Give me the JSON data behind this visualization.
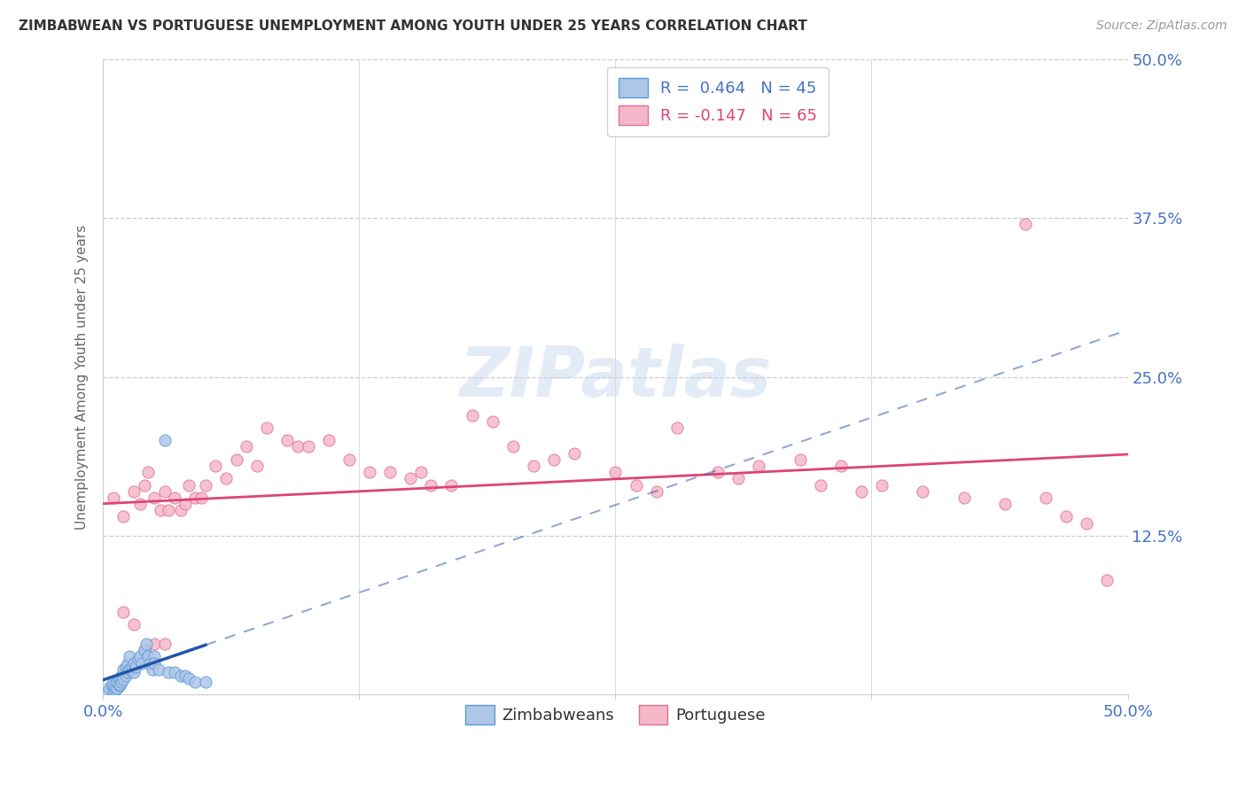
{
  "title": "ZIMBABWEAN VS PORTUGUESE UNEMPLOYMENT AMONG YOUTH UNDER 25 YEARS CORRELATION CHART",
  "source": "Source: ZipAtlas.com",
  "ylabel": "Unemployment Among Youth under 25 years",
  "xlim": [
    0.0,
    0.5
  ],
  "ylim": [
    0.0,
    0.5
  ],
  "xtick_labels_left": "0.0%",
  "xtick_labels_right": "50.0%",
  "ytick_labels": [
    "50.0%",
    "37.5%",
    "25.0%",
    "12.5%"
  ],
  "ytick_vals": [
    0.5,
    0.375,
    0.25,
    0.125
  ],
  "zim_R": 0.464,
  "zim_N": 45,
  "port_R": -0.147,
  "port_N": 65,
  "zim_color": "#aec6e8",
  "zim_edge_color": "#5b9bd5",
  "port_color": "#f5b8c8",
  "port_edge_color": "#e07090",
  "zim_trend_color": "#2255aa",
  "port_trend_color": "#dd4477",
  "watermark_color": "#c8d8ee",
  "zim_x": [
    0.002,
    0.003,
    0.004,
    0.005,
    0.005,
    0.006,
    0.006,
    0.007,
    0.007,
    0.008,
    0.008,
    0.008,
    0.009,
    0.009,
    0.01,
    0.01,
    0.011,
    0.011,
    0.012,
    0.012,
    0.013,
    0.013,
    0.014,
    0.015,
    0.015,
    0.016,
    0.017,
    0.018,
    0.019,
    0.02,
    0.021,
    0.022,
    0.023,
    0.024,
    0.025,
    0.025,
    0.027,
    0.03,
    0.032,
    0.035,
    0.038,
    0.04,
    0.042,
    0.045,
    0.05
  ],
  "zim_y": [
    0.002,
    0.005,
    0.008,
    0.003,
    0.007,
    0.004,
    0.006,
    0.005,
    0.01,
    0.007,
    0.012,
    0.008,
    0.01,
    0.015,
    0.012,
    0.02,
    0.015,
    0.022,
    0.018,
    0.025,
    0.02,
    0.03,
    0.022,
    0.018,
    0.025,
    0.022,
    0.028,
    0.03,
    0.025,
    0.035,
    0.04,
    0.03,
    0.025,
    0.02,
    0.03,
    0.025,
    0.02,
    0.2,
    0.018,
    0.018,
    0.015,
    0.015,
    0.013,
    0.01,
    0.01
  ],
  "port_x": [
    0.005,
    0.01,
    0.015,
    0.018,
    0.02,
    0.022,
    0.025,
    0.028,
    0.03,
    0.032,
    0.035,
    0.038,
    0.04,
    0.042,
    0.045,
    0.048,
    0.05,
    0.055,
    0.06,
    0.065,
    0.07,
    0.075,
    0.08,
    0.09,
    0.095,
    0.1,
    0.11,
    0.12,
    0.13,
    0.14,
    0.15,
    0.155,
    0.16,
    0.17,
    0.18,
    0.19,
    0.2,
    0.21,
    0.22,
    0.23,
    0.25,
    0.26,
    0.27,
    0.28,
    0.3,
    0.31,
    0.32,
    0.34,
    0.35,
    0.36,
    0.37,
    0.38,
    0.4,
    0.42,
    0.44,
    0.45,
    0.46,
    0.47,
    0.48,
    0.49,
    0.01,
    0.015,
    0.02,
    0.025,
    0.03
  ],
  "port_y": [
    0.155,
    0.14,
    0.16,
    0.15,
    0.165,
    0.175,
    0.155,
    0.145,
    0.16,
    0.145,
    0.155,
    0.145,
    0.15,
    0.165,
    0.155,
    0.155,
    0.165,
    0.18,
    0.17,
    0.185,
    0.195,
    0.18,
    0.21,
    0.2,
    0.195,
    0.195,
    0.2,
    0.185,
    0.175,
    0.175,
    0.17,
    0.175,
    0.165,
    0.165,
    0.22,
    0.215,
    0.195,
    0.18,
    0.185,
    0.19,
    0.175,
    0.165,
    0.16,
    0.21,
    0.175,
    0.17,
    0.18,
    0.185,
    0.165,
    0.18,
    0.16,
    0.165,
    0.16,
    0.155,
    0.15,
    0.37,
    0.155,
    0.14,
    0.135,
    0.09,
    0.065,
    0.055,
    0.035,
    0.04,
    0.04
  ]
}
